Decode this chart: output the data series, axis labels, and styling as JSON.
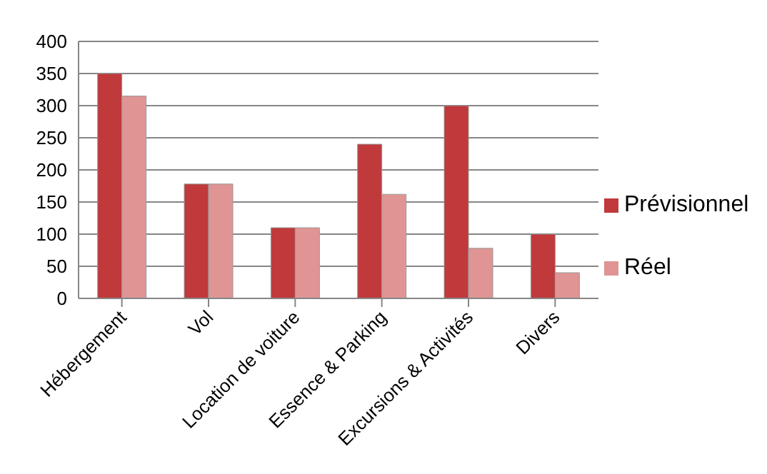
{
  "chart_data": {
    "type": "bar",
    "categories": [
      "Hébergement",
      "Vol",
      "Location de voiture",
      "Essence & Parking",
      "Excursions & Activités",
      "Divers"
    ],
    "series": [
      {
        "name": "Prévisionnel",
        "color": "#c0393b",
        "values": [
          350,
          178,
          110,
          240,
          300,
          100
        ]
      },
      {
        "name": "Réel",
        "color": "#e09494",
        "values": [
          315,
          178,
          110,
          162,
          78,
          40
        ]
      }
    ],
    "ylim": [
      0,
      400
    ],
    "yticks": [
      0,
      50,
      100,
      150,
      200,
      250,
      300,
      350,
      400
    ],
    "grid": "y",
    "legend": "right"
  }
}
